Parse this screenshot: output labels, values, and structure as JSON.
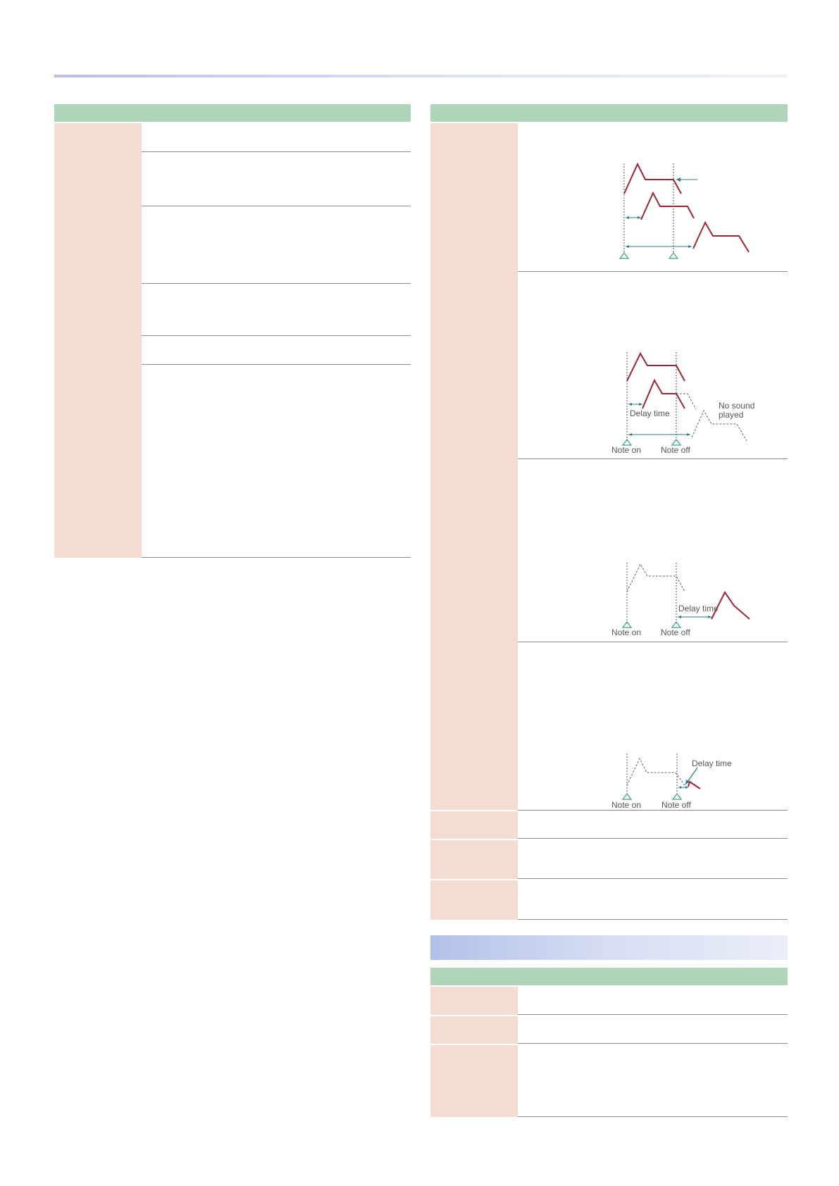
{
  "colors": {
    "table_header": "#afd5b8",
    "param_cell": "#f3dcd1",
    "section_bar": "#b2c1ea",
    "envelope_line": "#9b2535",
    "arrow_line": "#2b7c84",
    "marker": "#3aa47a"
  },
  "diagrams": [
    {
      "labels": {}
    },
    {
      "labels": {
        "delay_time": "Delay time",
        "no_sound_line1": "No sound",
        "no_sound_line2": "played",
        "note_on": "Note on",
        "note_off": "Note off"
      }
    },
    {
      "labels": {
        "delay_time": "Delay time",
        "note_on": "Note on",
        "note_off": "Note off"
      }
    },
    {
      "labels": {
        "delay_time": "Delay time",
        "note_on": "Note on",
        "note_off": "Note off"
      }
    }
  ]
}
